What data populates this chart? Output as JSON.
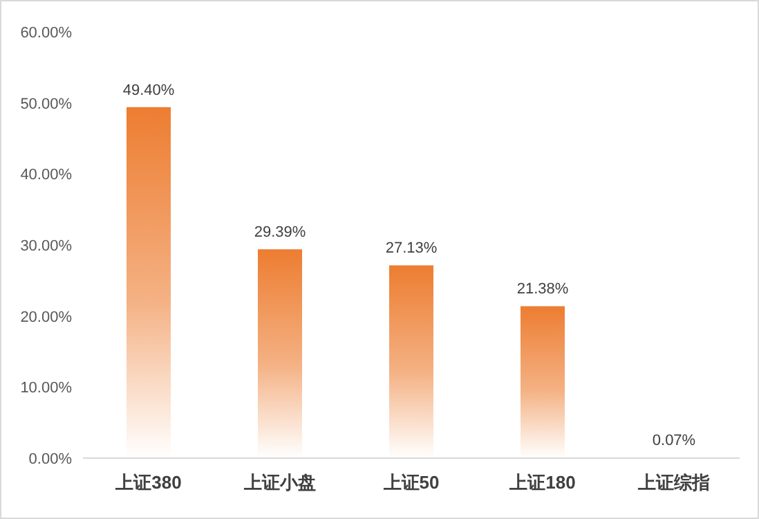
{
  "chart_data": {
    "type": "bar",
    "categories": [
      "上证380",
      "上证小盘",
      "上证50",
      "上证180",
      "上证综指"
    ],
    "values": [
      49.4,
      29.39,
      27.13,
      21.38,
      0.07
    ],
    "value_labels": [
      "49.40%",
      "29.39%",
      "27.13%",
      "21.38%",
      "0.07%"
    ],
    "color": "#ed7d31",
    "ylim": [
      0,
      60
    ],
    "yticks": [
      {
        "value": 0,
        "label": "0.00%"
      },
      {
        "value": 10,
        "label": "10.00%"
      },
      {
        "value": 20,
        "label": "20.00%"
      },
      {
        "value": 30,
        "label": "30.00%"
      },
      {
        "value": 40,
        "label": "40.00%"
      },
      {
        "value": 50,
        "label": "50.00%"
      },
      {
        "value": 60,
        "label": "60.00%"
      }
    ],
    "grid": false
  }
}
